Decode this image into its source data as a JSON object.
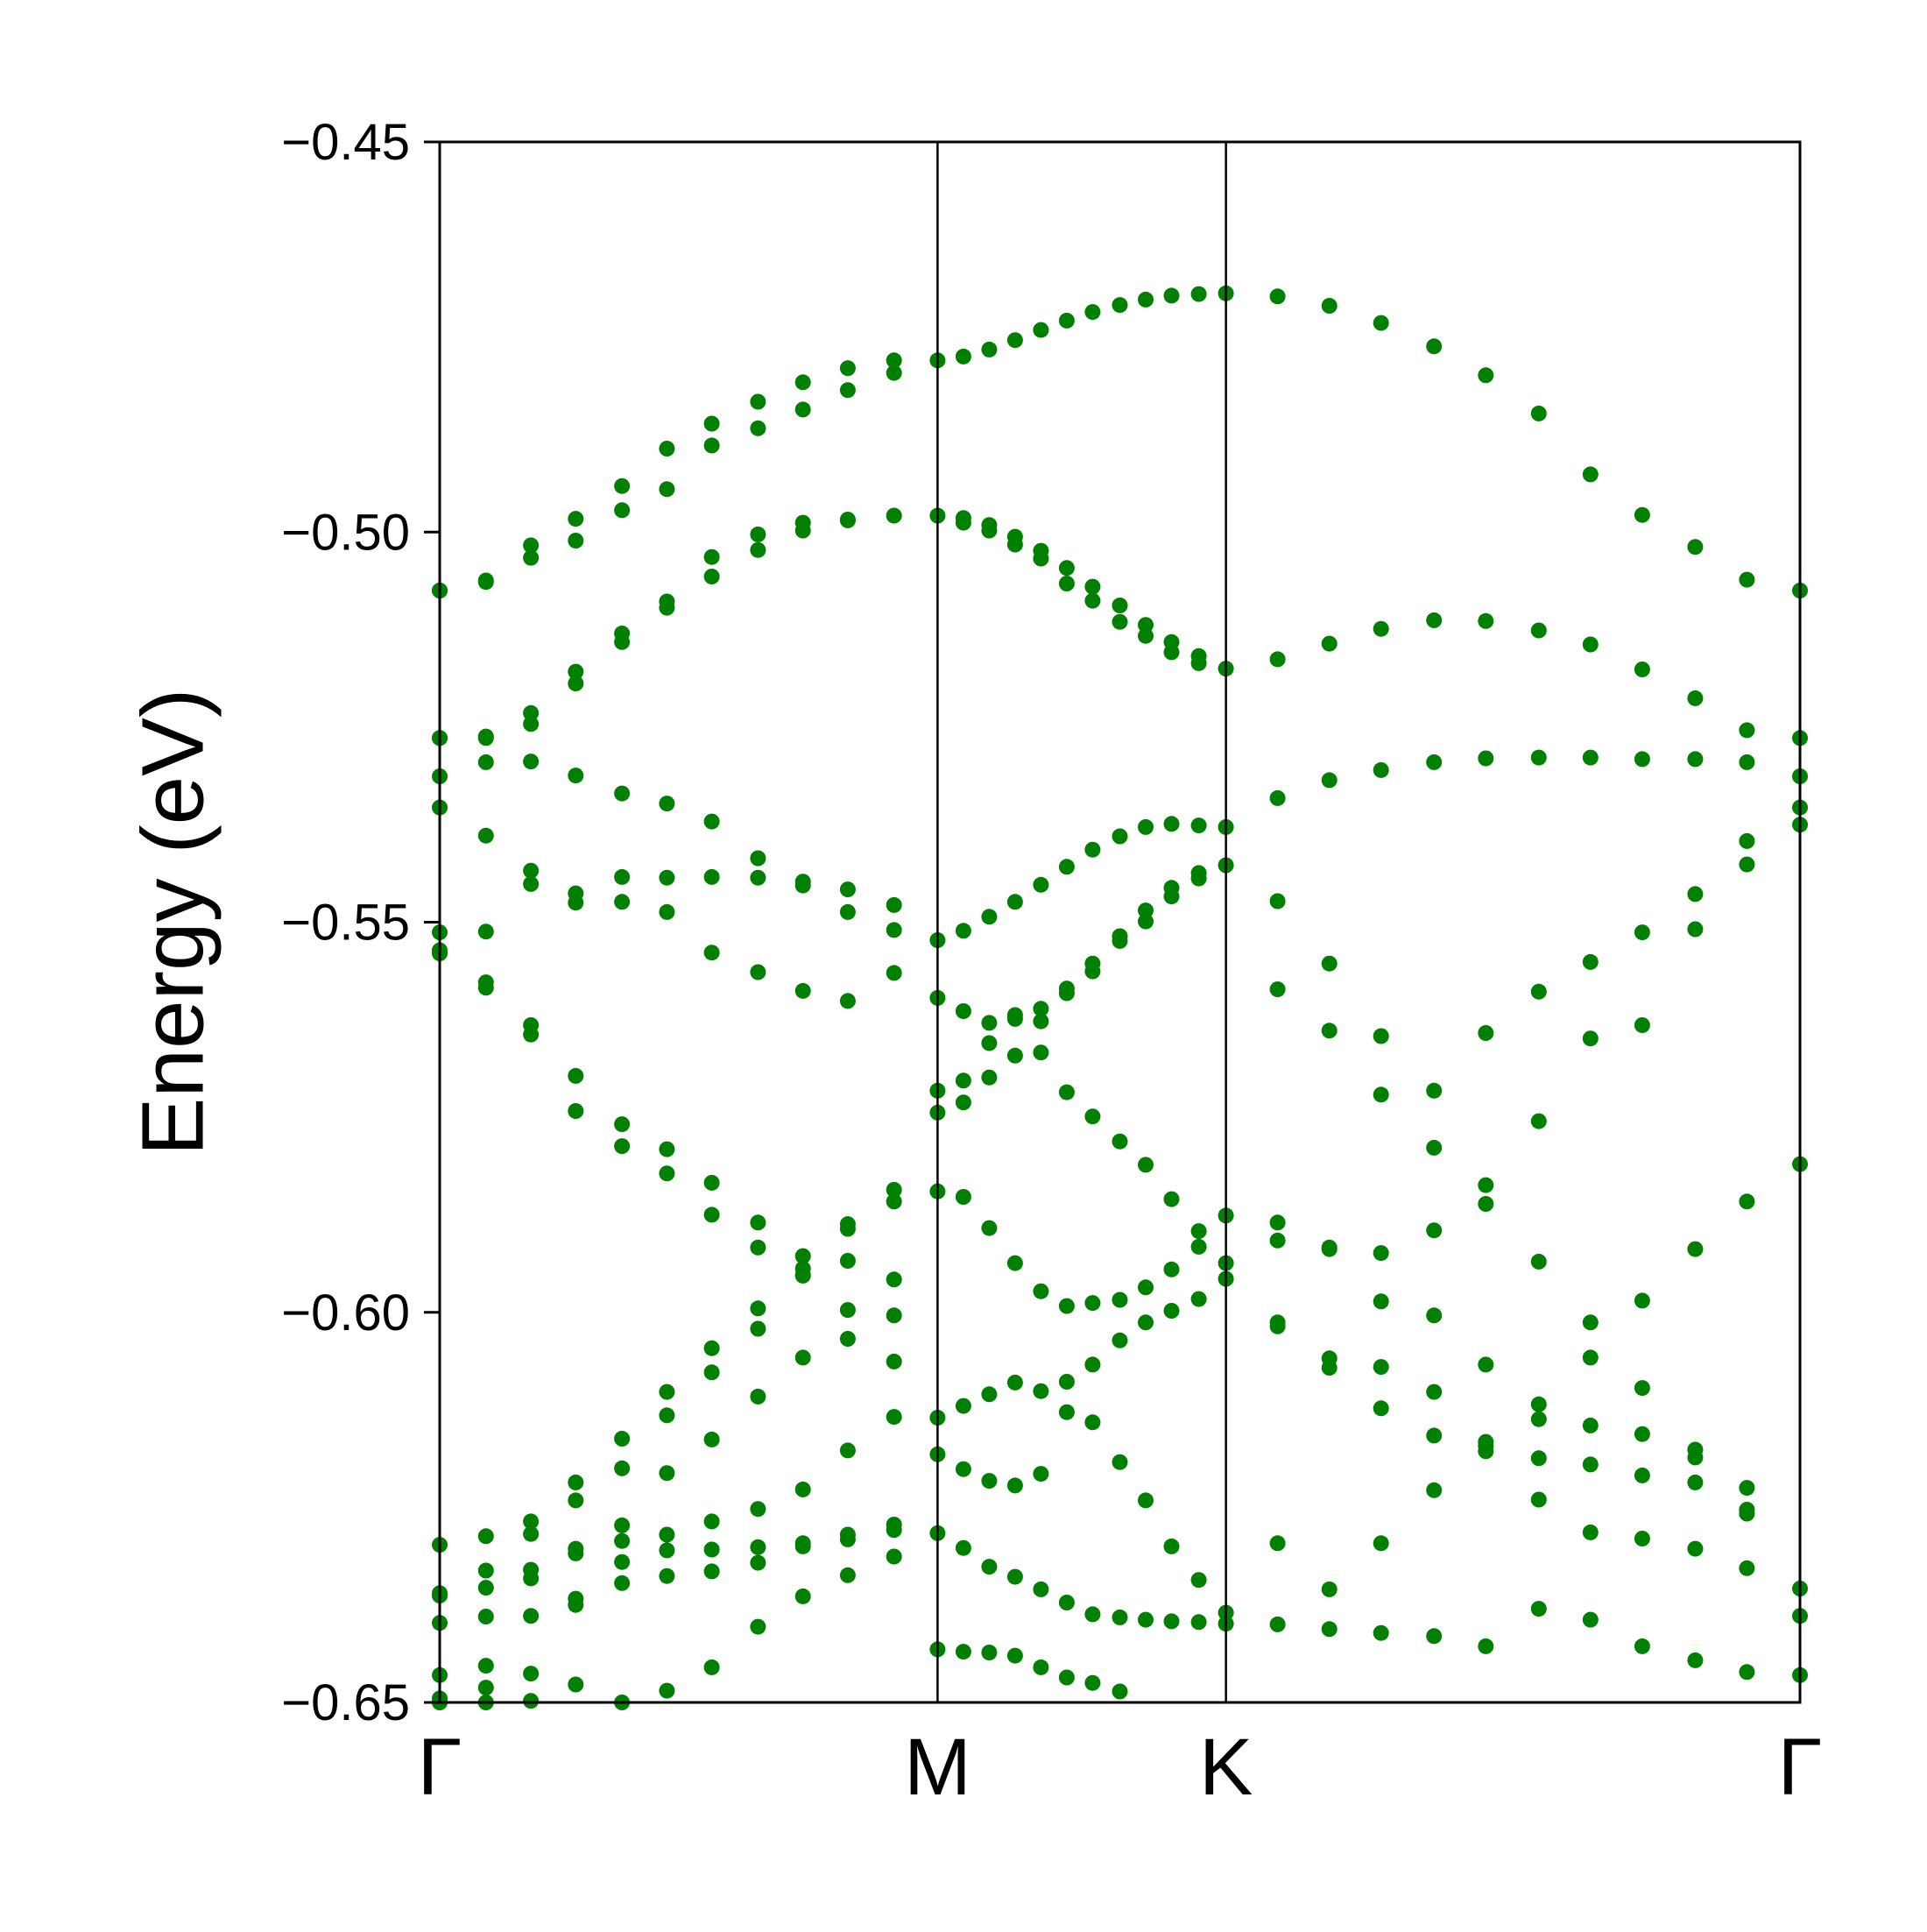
{
  "chart_data": {
    "type": "scatter",
    "ylabel": "Energy (eV)",
    "xlabel": "",
    "ylim": [
      -0.65,
      -0.45
    ],
    "x_range": [
      0,
      1.0
    ],
    "yticks": [
      {
        "value": -0.45,
        "label": "−0.45"
      },
      {
        "value": -0.5,
        "label": "−0.50"
      },
      {
        "value": -0.55,
        "label": "−0.55"
      },
      {
        "value": -0.6,
        "label": "−0.60"
      },
      {
        "value": -0.65,
        "label": "−0.65"
      }
    ],
    "kpoints": [
      {
        "label": "Γ",
        "position": 0.0
      },
      {
        "label": "M",
        "position": 0.366
      },
      {
        "label": "K",
        "position": 0.578
      },
      {
        "label": "Γ",
        "position": 1.0
      }
    ],
    "grid": false,
    "marker_color": "#008000",
    "band_series": [
      {
        "x": [
          0.0,
          0.034,
          0.067,
          0.1,
          0.134,
          0.167,
          0.2,
          0.234,
          0.267,
          0.3,
          0.334,
          0.366,
          0.385,
          0.404,
          0.423,
          0.442,
          0.461,
          0.48,
          0.5,
          0.519,
          0.538,
          0.558,
          0.578,
          0.616,
          0.654,
          0.692,
          0.731,
          0.769,
          0.808,
          0.846,
          0.884,
          0.923,
          0.961,
          1.0
        ],
        "y": [
          -0.5075,
          -0.5064,
          -0.5033,
          -0.4983,
          -0.4941,
          -0.4893,
          -0.4861,
          -0.4833,
          -0.4808,
          -0.479,
          -0.478,
          -0.478,
          -0.4775,
          -0.4766,
          -0.4754,
          -0.4741,
          -0.4729,
          -0.4718,
          -0.4709,
          -0.4702,
          -0.4697,
          -0.4695,
          -0.4694,
          -0.4698,
          -0.471,
          -0.4732,
          -0.4762,
          -0.4799,
          -0.4848,
          -0.4926,
          -0.4978,
          -0.5019,
          -0.5061,
          -0.5075
        ]
      },
      {
        "x": [
          0.0,
          0.034,
          0.067,
          0.1,
          0.134,
          0.167,
          0.2,
          0.234,
          0.267,
          0.3,
          0.334
        ],
        "y": [
          -0.5075,
          -0.5062,
          -0.5017,
          -0.5011,
          -0.4972,
          -0.4945,
          -0.4889,
          -0.4867,
          -0.4843,
          -0.4818,
          -0.4796
        ]
      },
      {
        "x": [
          0.0,
          0.034,
          0.067,
          0.1,
          0.134,
          0.167,
          0.2,
          0.234,
          0.267,
          0.3,
          0.334,
          0.366,
          0.385,
          0.404,
          0.423,
          0.442,
          0.461,
          0.48,
          0.5,
          0.519,
          0.538,
          0.558,
          0.578,
          0.616,
          0.654,
          0.692,
          0.731,
          0.769,
          0.808,
          0.846,
          0.884,
          0.923,
          0.961,
          1.0
        ],
        "y": [
          -0.5264,
          -0.5264,
          -0.5232,
          -0.5179,
          -0.513,
          -0.5089,
          -0.5057,
          -0.5023,
          -0.4998,
          -0.4985,
          -0.4979,
          -0.4979,
          -0.4982,
          -0.4991,
          -0.5006,
          -0.5024,
          -0.5046,
          -0.507,
          -0.5094,
          -0.5119,
          -0.5141,
          -0.5159,
          -0.5175,
          -0.5163,
          -0.5143,
          -0.5124,
          -0.5113,
          -0.5114,
          -0.5126,
          -0.5144,
          -0.5176,
          -0.5213,
          -0.5254,
          -0.5264
        ]
      },
      {
        "x": [
          0.0,
          0.034,
          0.067,
          0.1,
          0.134,
          0.167,
          0.2,
          0.234,
          0.267,
          0.3
        ],
        "y": [
          -0.5264,
          -0.5262,
          -0.5246,
          -0.5194,
          -0.5141,
          -0.5097,
          -0.5032,
          -0.5003,
          -0.4988,
          -0.4984
        ]
      },
      {
        "x": [
          0.385,
          0.404,
          0.423,
          0.442,
          0.461,
          0.48,
          0.5,
          0.519,
          0.538,
          0.558
        ],
        "y": [
          -0.4988,
          -0.4998,
          -0.5016,
          -0.5034,
          -0.5066,
          -0.5088,
          -0.5115,
          -0.5133,
          -0.5154,
          -0.5168
        ]
      },
      {
        "x": [
          0.0,
          0.034,
          0.067,
          0.1,
          0.134,
          0.167,
          0.2,
          0.234,
          0.267,
          0.3,
          0.334,
          0.366,
          0.385,
          0.404,
          0.423,
          0.442,
          0.461,
          0.48,
          0.5,
          0.519,
          0.538,
          0.558,
          0.578,
          0.616,
          0.654,
          0.692,
          0.731,
          0.769,
          0.808,
          0.846,
          0.884,
          0.923,
          0.961,
          1.0
        ],
        "y": [
          -0.5313,
          -0.5295,
          -0.5294,
          -0.5312,
          -0.5335,
          -0.5348,
          -0.5371,
          -0.5418,
          -0.5453,
          -0.5487,
          -0.551,
          -0.5523,
          -0.5511,
          -0.5493,
          -0.5474,
          -0.5452,
          -0.5429,
          -0.5407,
          -0.539,
          -0.5378,
          -0.5374,
          -0.5376,
          -0.5378,
          -0.5341,
          -0.5318,
          -0.5305,
          -0.5295,
          -0.529,
          -0.5289,
          -0.5289,
          -0.5291,
          -0.5291,
          -0.5295,
          -0.5313
        ]
      },
      {
        "x": [
          0.0,
          0.034,
          0.067,
          0.1,
          0.134,
          0.167,
          0.2,
          0.234,
          0.267,
          0.3,
          0.334
        ],
        "y": [
          -0.5353,
          -0.5389,
          -0.5434,
          -0.5475,
          -0.5474,
          -0.5487,
          -0.5539,
          -0.5564,
          -0.5588,
          -0.5601,
          -0.5565
        ]
      },
      {
        "x": [
          0.0,
          0.034,
          0.067,
          0.1,
          0.134,
          0.167,
          0.2,
          0.234,
          0.267,
          0.3,
          0.334,
          0.366,
          0.385,
          0.404,
          0.423,
          0.442,
          0.461,
          0.48,
          0.5,
          0.519,
          0.538,
          0.558,
          0.578,
          0.616,
          0.654,
          0.692,
          0.731,
          0.769,
          0.808,
          0.846,
          0.884,
          0.923,
          0.961,
          1.0
        ],
        "y": [
          -0.5513,
          -0.5512,
          -0.5451,
          -0.5463,
          -0.5442,
          -0.5443,
          -0.5442,
          -0.5443,
          -0.5448,
          -0.5458,
          -0.5478,
          -0.5597,
          -0.5614,
          -0.5629,
          -0.5624,
          -0.5611,
          -0.5585,
          -0.5563,
          -0.5524,
          -0.5499,
          -0.5467,
          -0.5444,
          -0.5427,
          -0.5473,
          -0.5553,
          -0.5646,
          -0.5716,
          -0.5642,
          -0.5589,
          -0.5551,
          -0.5513,
          -0.5464,
          -0.5396,
          -0.5353
        ]
      },
      {
        "x": [
          0.0,
          0.034,
          0.067,
          0.1,
          0.134,
          0.167,
          0.2,
          0.234,
          0.267,
          0.3,
          0.334
        ],
        "y": [
          -0.554,
          -0.5577,
          -0.5644,
          -0.5697,
          -0.5759,
          -0.5791,
          -0.5834,
          -0.5885,
          -0.5928,
          -0.5934,
          -0.5958
        ]
      },
      {
        "x": [
          0.0,
          0.034,
          0.067,
          0.1,
          0.134,
          0.167,
          0.2,
          0.234,
          0.267,
          0.3,
          0.334
        ],
        "y": [
          -0.5536,
          -0.5584,
          -0.5632,
          -0.5742,
          -0.5787,
          -0.5822,
          -0.5875,
          -0.5917,
          -0.5953,
          -0.5997,
          -0.6063
        ]
      },
      {
        "x": [
          0.366,
          0.385,
          0.404,
          0.423,
          0.442,
          0.461,
          0.48,
          0.5,
          0.519,
          0.538,
          0.558
        ],
        "y": [
          -0.5744,
          -0.5731,
          -0.5699,
          -0.5671,
          -0.5627,
          -0.5591,
          -0.5553,
          -0.5518,
          -0.5485,
          -0.5456,
          -0.5437
        ]
      },
      {
        "x": [
          0.366,
          0.385,
          0.404,
          0.423,
          0.442,
          0.461,
          0.48,
          0.5,
          0.519,
          0.538,
          0.558,
          0.578,
          0.616,
          0.654,
          0.692,
          0.731,
          0.769,
          0.808,
          0.846,
          0.884,
          0.923,
          0.961,
          1.0
        ],
        "y": [
          -0.5845,
          -0.5852,
          -0.5892,
          -0.5937,
          -0.5973,
          -0.5992,
          -0.5988,
          -0.5984,
          -0.5968,
          -0.5945,
          -0.5916,
          -0.5876,
          -0.5885,
          -0.5919,
          -0.5924,
          -0.5895,
          -0.5837,
          -0.5755,
          -0.5649,
          -0.5632,
          -0.5509,
          -0.5426,
          -0.5375
        ]
      },
      {
        "x": [
          0.366,
          0.385,
          0.404,
          0.423,
          0.442,
          0.461,
          0.48,
          0.5,
          0.519,
          0.538,
          0.558,
          0.578,
          0.616,
          0.654,
          0.692,
          0.731,
          0.769,
          0.808,
          0.846,
          0.884,
          0.923,
          0.961
        ],
        "y": [
          -0.5716,
          -0.5703,
          -0.5655,
          -0.5619,
          -0.5667,
          -0.5718,
          -0.5749,
          -0.5781,
          -0.5811,
          -0.5855,
          -0.5896,
          -0.5937,
          -0.6018,
          -0.6071,
          -0.6123,
          -0.6158,
          -0.6178,
          -0.6187,
          -0.6195,
          -0.6209,
          -0.6218,
          -0.6225
        ]
      },
      {
        "x": [
          0.366,
          0.385,
          0.404,
          0.423,
          0.442,
          0.461,
          0.48,
          0.5,
          0.519,
          0.538,
          0.558,
          0.578
        ],
        "y": [
          -0.6135,
          -0.612,
          -0.6105,
          -0.609,
          -0.6101,
          -0.6089,
          -0.6067,
          -0.6036,
          -0.6013,
          -0.5998,
          -0.5983,
          -0.5957
        ]
      },
      {
        "x": [
          0.366,
          0.385,
          0.404,
          0.423,
          0.442,
          0.461,
          0.48,
          0.5,
          0.519,
          0.538,
          0.558,
          0.578,
          0.616,
          0.654,
          0.692,
          0.731,
          0.769,
          0.808,
          0.846,
          0.884,
          0.923,
          0.961,
          1.0
        ],
        "y": [
          -0.6182,
          -0.6201,
          -0.6216,
          -0.6222,
          -0.6207,
          -0.6128,
          -0.6141,
          -0.6192,
          -0.6241,
          -0.63,
          -0.6343,
          -0.6385,
          -0.64,
          -0.6406,
          -0.6411,
          -0.6415,
          -0.6428,
          -0.638,
          -0.6394,
          -0.6428,
          -0.6446,
          -0.6461,
          -0.6465
        ]
      },
      {
        "x": [
          0.366,
          0.385,
          0.404,
          0.423,
          0.442,
          0.461,
          0.48,
          0.5,
          0.519,
          0.538,
          0.558,
          0.578,
          0.616,
          0.654,
          0.692,
          0.731,
          0.769,
          0.808,
          0.846,
          0.884,
          0.923,
          0.961,
          1.0
        ],
        "y": [
          -0.6283,
          -0.6302,
          -0.6326,
          -0.6339,
          -0.6355,
          -0.6372,
          -0.6387,
          -0.6391,
          -0.6394,
          -0.6396,
          -0.6397,
          -0.6399,
          -0.6296,
          -0.6355,
          -0.6296,
          -0.6228,
          -0.6166,
          -0.6137,
          -0.6058,
          -0.5985,
          -0.5919,
          -0.5858,
          -0.581
        ]
      },
      {
        "x": [
          0.366,
          0.385,
          0.404,
          0.423,
          0.442,
          0.461,
          0.48,
          0.5,
          0.519,
          0.538,
          0.558
        ],
        "y": [
          -0.6432,
          -0.6435,
          -0.6436,
          -0.644,
          -0.6455,
          -0.6468,
          -0.6475,
          -0.6486,
          -0.6504,
          -0.652,
          -0.654
        ]
      },
      {
        "x": [
          0.0,
          0.034,
          0.067,
          0.1,
          0.134,
          0.167,
          0.2,
          0.234,
          0.267,
          0.3,
          0.334
        ],
        "y": [
          -0.6298,
          -0.6287,
          -0.6268,
          -0.6218,
          -0.6162,
          -0.6102,
          -0.6046,
          -0.5995,
          -0.5944,
          -0.5893,
          -0.5843
        ]
      },
      {
        "x": [
          0.0,
          0.034,
          0.067,
          0.1,
          0.134,
          0.167,
          0.2,
          0.234,
          0.267,
          0.3,
          0.334
        ],
        "y": [
          -0.636,
          -0.6331,
          -0.6284,
          -0.6241,
          -0.62,
          -0.6132,
          -0.6077,
          -0.6021,
          -0.5952,
          -0.5887,
          -0.5858
        ]
      },
      {
        "x": [
          0.0,
          0.034,
          0.067,
          0.1,
          0.134,
          0.167,
          0.2,
          0.234,
          0.267,
          0.3,
          0.334
        ],
        "y": [
          -0.6398,
          -0.639,
          -0.6341,
          -0.6303,
          -0.6293,
          -0.6285,
          -0.6268,
          -0.6252,
          -0.6227,
          -0.6177,
          -0.6134
        ]
      },
      {
        "x": [
          0.0,
          0.034,
          0.067,
          0.1,
          0.134,
          0.167,
          0.2,
          0.234,
          0.267,
          0.3,
          0.334
        ],
        "y": [
          -0.6465,
          -0.6453,
          -0.6389,
          -0.6367,
          -0.6347,
          -0.6338,
          -0.6332,
          -0.6321,
          -0.6296,
          -0.6285,
          -0.6272
        ]
      },
      {
        "x": [
          0.0,
          0.034,
          0.067,
          0.1,
          0.134,
          0.167,
          0.2,
          0.234,
          0.267,
          0.3,
          0.334
        ],
        "y": [
          -0.6495,
          -0.6481,
          -0.6463,
          -0.6375,
          -0.632,
          -0.6305,
          -0.6304,
          -0.6301,
          -0.63,
          -0.6291,
          -0.6279
        ]
      },
      {
        "x": [
          0.0,
          0.034,
          0.067,
          0.1,
          0.134,
          0.167,
          0.2,
          0.234,
          0.267,
          0.3,
          0.334
        ],
        "y": [
          -0.65,
          -0.65,
          -0.6498,
          -0.6477,
          -0.65,
          -0.6485,
          -0.6455,
          -0.6403,
          -0.6364,
          -0.6337,
          -0.6313
        ]
      },
      {
        "x": [
          0.0,
          0.034,
          0.067,
          0.1,
          0.134,
          0.167,
          0.2,
          0.234,
          0.267,
          0.3,
          0.334
        ],
        "y": [
          -0.6363,
          -0.6353,
          -0.633,
          -0.6309,
          -0.6273,
          -0.6206,
          -0.6163,
          -0.6108,
          -0.6058,
          -0.6034,
          -0.6004
        ]
      },
      {
        "x": [
          0.616,
          0.654,
          0.692,
          0.731,
          0.769,
          0.808,
          0.846,
          0.884,
          0.923,
          0.961,
          1.0
        ],
        "y": [
          -0.5586,
          -0.5639,
          -0.5721,
          -0.5789,
          -0.5861,
          -0.5935,
          -0.6013,
          -0.6097,
          -0.6176,
          -0.6258,
          -0.6354
        ]
      },
      {
        "x": [
          0.616,
          0.654,
          0.692,
          0.731,
          0.769,
          0.808,
          0.846,
          0.884,
          0.923,
          0.961
        ],
        "y": [
          -0.5908,
          -0.5917,
          -0.5986,
          -0.6004,
          -0.6067,
          -0.6118,
          -0.6145,
          -0.6156,
          -0.6186,
          -0.6253
        ]
      },
      {
        "x": [
          0.616,
          0.654,
          0.692,
          0.731,
          0.769,
          0.808,
          0.846,
          0.884,
          0.923,
          0.961,
          1.0
        ],
        "y": [
          -0.6013,
          -0.6059,
          -0.607,
          -0.6102,
          -0.6171,
          -0.624,
          -0.6282,
          -0.629,
          -0.6303,
          -0.6328,
          -0.6389
        ]
      }
    ]
  }
}
